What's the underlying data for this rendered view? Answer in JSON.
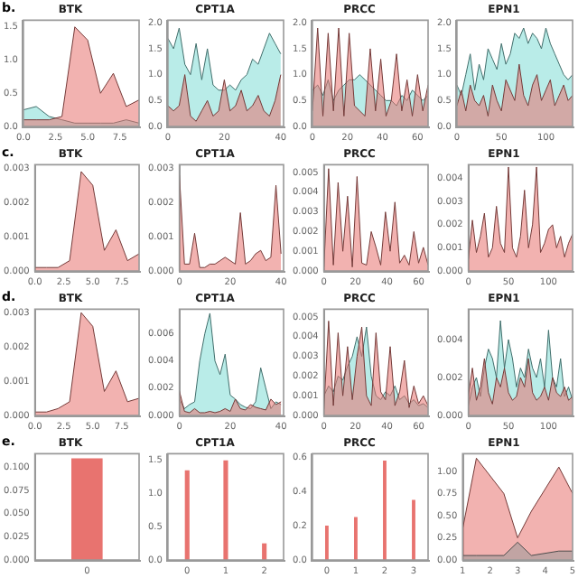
{
  "chart_data": [
    {
      "type": "area",
      "title": "BTK",
      "annotations": [
        "b."
      ],
      "xlim": [
        0,
        9
      ],
      "xticks": [
        {
          "value": 0,
          "label": "0.0"
        },
        {
          "value": 2.5,
          "label": "2.5"
        },
        {
          "value": 5,
          "label": "5.0"
        },
        {
          "value": 7.5,
          "label": "7.5"
        }
      ],
      "ylim": [
        0,
        1.6
      ],
      "yticks": [
        {
          "value": 0,
          "label": "0.0"
        },
        {
          "value": 0.5,
          "label": "0.5"
        },
        {
          "value": 1,
          "label": "1.0"
        },
        {
          "value": 1.5,
          "label": "1.5"
        }
      ],
      "x": [
        0,
        1,
        2,
        3,
        4,
        5,
        6,
        7,
        8,
        9
      ],
      "series": [
        {
          "color": "#7fdcd6",
          "values": [
            0.25,
            0.3,
            0.15,
            0.1,
            0.05,
            0.05,
            0.05,
            0.05,
            0.1,
            0.05
          ]
        },
        {
          "color": "#e8736f",
          "values": [
            0.1,
            0.1,
            0.1,
            0.15,
            1.5,
            1.3,
            0.5,
            0.8,
            0.3,
            0.4
          ]
        }
      ],
      "grid": false,
      "legend": false
    },
    {
      "type": "area",
      "title": "CPT1A",
      "xlim": [
        0,
        41
      ],
      "xticks": [
        0,
        20,
        40
      ],
      "ylim": [
        0,
        2.05
      ],
      "yticks": [
        {
          "value": 0,
          "label": "0.0"
        },
        {
          "value": 0.5,
          "label": "0.5"
        },
        {
          "value": 1,
          "label": "1.0"
        },
        {
          "value": 1.5,
          "label": "1.5"
        },
        {
          "value": 2,
          "label": "2.0"
        }
      ],
      "x": [
        0,
        2,
        4,
        6,
        8,
        10,
        12,
        14,
        16,
        18,
        20,
        22,
        24,
        26,
        28,
        30,
        32,
        34,
        36,
        38,
        40
      ],
      "series": [
        {
          "color": "#7fdcd6",
          "values": [
            1.7,
            1.5,
            1.9,
            1.2,
            1.0,
            1.6,
            0.9,
            1.5,
            0.8,
            0.7,
            0.7,
            0.8,
            0.7,
            0.9,
            1.0,
            1.3,
            1.2,
            1.5,
            1.8,
            1.6,
            1.4
          ]
        },
        {
          "color": "#e8736f",
          "values": [
            0.4,
            0.3,
            0.4,
            1.0,
            0.2,
            0.1,
            0.3,
            0.5,
            0.2,
            0.3,
            0.9,
            0.3,
            0.4,
            0.7,
            0.3,
            0.4,
            0.6,
            0.3,
            0.2,
            0.5,
            1.0
          ]
        }
      ],
      "grid": false,
      "legend": false
    },
    {
      "type": "area",
      "title": "PRCC",
      "xlim": [
        0,
        66
      ],
      "xticks": [
        0,
        20,
        40,
        60
      ],
      "ylim": [
        0,
        2.05
      ],
      "yticks": [
        {
          "value": 0,
          "label": "0.0"
        },
        {
          "value": 0.5,
          "label": "0.5"
        },
        {
          "value": 1,
          "label": "1.0"
        },
        {
          "value": 1.5,
          "label": "1.5"
        },
        {
          "value": 2,
          "label": "2.0"
        }
      ],
      "x": [
        0,
        3,
        6,
        9,
        12,
        15,
        18,
        21,
        24,
        27,
        30,
        33,
        36,
        39,
        42,
        45,
        48,
        51,
        54,
        57,
        60,
        63,
        66
      ],
      "series": [
        {
          "color": "#7fdcd6",
          "values": [
            0.7,
            0.8,
            0.6,
            0.9,
            0.5,
            0.7,
            0.8,
            0.9,
            0.9,
            1.0,
            0.9,
            0.8,
            0.7,
            0.6,
            0.5,
            0.5,
            0.4,
            0.6,
            0.5,
            0.7,
            0.6,
            0.5,
            0.6
          ]
        },
        {
          "color": "#e8736f",
          "values": [
            0.3,
            1.9,
            0.2,
            1.8,
            0.3,
            1.9,
            0.2,
            1.8,
            0.4,
            0.3,
            0.2,
            1.5,
            0.3,
            1.3,
            0.2,
            0.5,
            1.4,
            0.3,
            0.9,
            0.2,
            1.0,
            0.3,
            0.8
          ]
        }
      ],
      "grid": false,
      "legend": false
    },
    {
      "type": "area",
      "title": "EPN1",
      "xlim": [
        0,
        130
      ],
      "xticks": [
        0,
        50,
        100
      ],
      "ylim": [
        0,
        2.05
      ],
      "yticks": [
        {
          "value": 0,
          "label": "0.0"
        },
        {
          "value": 0.5,
          "label": "0.5"
        },
        {
          "value": 1,
          "label": "1.0"
        },
        {
          "value": 1.5,
          "label": "1.5"
        },
        {
          "value": 2,
          "label": "2.0"
        }
      ],
      "x": [
        0,
        5,
        10,
        15,
        20,
        25,
        30,
        35,
        40,
        45,
        50,
        55,
        60,
        65,
        70,
        75,
        80,
        85,
        90,
        95,
        100,
        105,
        110,
        115,
        120,
        125,
        130
      ],
      "series": [
        {
          "color": "#7fdcd6",
          "values": [
            0.8,
            0.6,
            1.0,
            1.4,
            0.7,
            1.2,
            0.9,
            1.5,
            1.3,
            1.1,
            1.6,
            1.2,
            1.4,
            1.8,
            1.7,
            1.9,
            1.6,
            1.8,
            1.7,
            1.5,
            1.9,
            1.6,
            1.4,
            1.2,
            1.0,
            0.9,
            1.0
          ]
        },
        {
          "color": "#e8736f",
          "values": [
            0.4,
            0.7,
            0.3,
            0.8,
            0.5,
            0.4,
            0.6,
            0.2,
            0.8,
            0.5,
            0.3,
            0.9,
            0.7,
            0.5,
            1.2,
            0.6,
            0.4,
            0.8,
            1.0,
            0.5,
            0.7,
            0.9,
            0.4,
            0.6,
            0.8,
            0.5,
            0.6
          ]
        }
      ],
      "grid": false,
      "legend": false
    },
    {
      "type": "area",
      "title": "BTK",
      "annotations": [
        "c."
      ],
      "xlim": [
        0,
        9
      ],
      "xticks": [
        {
          "value": 0,
          "label": "0.0"
        },
        {
          "value": 2.5,
          "label": "2.5"
        },
        {
          "value": 5,
          "label": "5.0"
        },
        {
          "value": 7.5,
          "label": "7.5"
        }
      ],
      "ylim": [
        0,
        0.0031
      ],
      "yticks": [
        {
          "value": 0,
          "label": "0.000"
        },
        {
          "value": 0.001,
          "label": "0.001"
        },
        {
          "value": 0.002,
          "label": "0.002"
        },
        {
          "value": 0.003,
          "label": "0.003"
        }
      ],
      "x": [
        0,
        1,
        2,
        3,
        4,
        5,
        6,
        7,
        8,
        9
      ],
      "series": [
        {
          "color": "#e8736f",
          "values": [
            0.0001,
            0.0001,
            0.0001,
            0.0003,
            0.0029,
            0.0025,
            0.0006,
            0.0012,
            0.0003,
            0.0005
          ]
        }
      ],
      "grid": false,
      "legend": false
    },
    {
      "type": "area",
      "title": "CPT1A",
      "xlim": [
        0,
        41
      ],
      "xticks": [
        0,
        20,
        40
      ],
      "ylim": [
        0,
        0.0031
      ],
      "yticks": [
        {
          "value": 0,
          "label": "0.000"
        },
        {
          "value": 0.001,
          "label": "0.001"
        },
        {
          "value": 0.002,
          "label": "0.002"
        },
        {
          "value": 0.003,
          "label": "0.003"
        }
      ],
      "x": [
        0,
        2,
        4,
        6,
        8,
        10,
        12,
        14,
        16,
        18,
        20,
        22,
        24,
        26,
        28,
        30,
        32,
        34,
        36,
        38,
        40
      ],
      "series": [
        {
          "color": "#e8736f",
          "values": [
            0.0028,
            0.0002,
            0.0002,
            0.0011,
            0.0001,
            0.0001,
            0.0002,
            0.0002,
            0.0003,
            0.0004,
            0.0003,
            0.0002,
            0.0017,
            0.0002,
            0.0003,
            0.0005,
            0.0006,
            0.0003,
            0.0004,
            0.0025,
            0.0005
          ]
        }
      ],
      "grid": false,
      "legend": false
    },
    {
      "type": "area",
      "title": "PRCC",
      "xlim": [
        0,
        66
      ],
      "xticks": [
        0,
        20,
        40,
        60
      ],
      "ylim": [
        0,
        0.0054
      ],
      "yticks": [
        {
          "value": 0,
          "label": "0.000"
        },
        {
          "value": 0.001,
          "label": "0.001"
        },
        {
          "value": 0.002,
          "label": "0.002"
        },
        {
          "value": 0.003,
          "label": "0.003"
        },
        {
          "value": 0.004,
          "label": "0.004"
        },
        {
          "value": 0.005,
          "label": "0.005"
        }
      ],
      "x": [
        0,
        3,
        6,
        9,
        12,
        15,
        18,
        21,
        24,
        27,
        30,
        33,
        36,
        39,
        42,
        45,
        48,
        51,
        54,
        57,
        60,
        63,
        66
      ],
      "series": [
        {
          "color": "#e8736f",
          "values": [
            0.0002,
            0.0052,
            0.0003,
            0.0045,
            0.001,
            0.0038,
            0.0002,
            0.0048,
            0.0004,
            0.0003,
            0.002,
            0.0012,
            0.0003,
            0.003,
            0.001,
            0.0035,
            0.0004,
            0.0008,
            0.0003,
            0.002,
            0.0004,
            0.0012,
            0.0003
          ]
        }
      ],
      "grid": false,
      "legend": false
    },
    {
      "type": "area",
      "title": "EPN1",
      "xlim": [
        0,
        130
      ],
      "xticks": [
        0,
        50,
        100
      ],
      "ylim": [
        0,
        0.0046
      ],
      "yticks": [
        {
          "value": 0,
          "label": "0.000"
        },
        {
          "value": 0.001,
          "label": "0.001"
        },
        {
          "value": 0.002,
          "label": "0.002"
        },
        {
          "value": 0.003,
          "label": "0.003"
        },
        {
          "value": 0.004,
          "label": "0.004"
        }
      ],
      "x": [
        0,
        5,
        10,
        15,
        20,
        25,
        30,
        35,
        40,
        45,
        50,
        55,
        60,
        65,
        70,
        75,
        80,
        85,
        90,
        95,
        100,
        105,
        110,
        115,
        120,
        125,
        130
      ],
      "series": [
        {
          "color": "#e8736f",
          "values": [
            0.0005,
            0.0022,
            0.0008,
            0.0015,
            0.0025,
            0.0006,
            0.001,
            0.0028,
            0.0012,
            0.0008,
            0.0045,
            0.001,
            0.0006,
            0.0015,
            0.0035,
            0.001,
            0.002,
            0.0045,
            0.0008,
            0.0012,
            0.0018,
            0.002,
            0.001,
            0.0015,
            0.0006,
            0.0012,
            0.0016
          ]
        }
      ],
      "grid": false,
      "legend": false
    },
    {
      "type": "area",
      "title": "BTK",
      "annotations": [
        "d."
      ],
      "xlim": [
        0,
        9
      ],
      "xticks": [
        {
          "value": 0,
          "label": "0.0"
        },
        {
          "value": 2.5,
          "label": "2.5"
        },
        {
          "value": 5,
          "label": "5.0"
        },
        {
          "value": 7.5,
          "label": "7.5"
        }
      ],
      "ylim": [
        0,
        0.0031
      ],
      "yticks": [
        {
          "value": 0,
          "label": "0.000"
        },
        {
          "value": 0.001,
          "label": "0.001"
        },
        {
          "value": 0.002,
          "label": "0.002"
        },
        {
          "value": 0.003,
          "label": "0.003"
        }
      ],
      "x": [
        0,
        1,
        2,
        3,
        4,
        5,
        6,
        7,
        8,
        9
      ],
      "series": [
        {
          "color": "#e8736f",
          "values": [
            0.0001,
            0.0001,
            0.0002,
            0.0004,
            0.003,
            0.0026,
            0.0007,
            0.0013,
            0.0004,
            0.0005
          ]
        }
      ],
      "grid": false,
      "legend": false
    },
    {
      "type": "area",
      "title": "CPT1A",
      "xlim": [
        0,
        41
      ],
      "xticks": [
        0,
        20,
        40
      ],
      "ylim": [
        0,
        0.0078
      ],
      "yticks": [
        {
          "value": 0,
          "label": "0.000"
        },
        {
          "value": 0.002,
          "label": "0.002"
        },
        {
          "value": 0.004,
          "label": "0.004"
        },
        {
          "value": 0.006,
          "label": "0.006"
        }
      ],
      "x": [
        0,
        2,
        4,
        6,
        8,
        10,
        12,
        14,
        16,
        18,
        20,
        22,
        24,
        26,
        28,
        30,
        32,
        34,
        36,
        38,
        40
      ],
      "series": [
        {
          "color": "#7fdcd6",
          "values": [
            0.0012,
            0.0005,
            0.0008,
            0.001,
            0.004,
            0.006,
            0.0075,
            0.004,
            0.003,
            0.0045,
            0.0015,
            0.0012,
            0.0008,
            0.0006,
            0.0005,
            0.001,
            0.0035,
            0.002,
            0.0005,
            0.001,
            0.0008
          ]
        },
        {
          "color": "#e8736f",
          "values": [
            0.0018,
            0.0003,
            0.0002,
            0.0005,
            0.0002,
            0.0002,
            0.0003,
            0.0002,
            0.0003,
            0.0005,
            0.0003,
            0.0012,
            0.0005,
            0.0004,
            0.0008,
            0.0006,
            0.0005,
            0.0004,
            0.0012,
            0.0008,
            0.001
          ]
        }
      ],
      "grid": false,
      "legend": false
    },
    {
      "type": "area",
      "title": "PRCC",
      "xlim": [
        0,
        66
      ],
      "xticks": [
        0,
        20,
        40,
        60
      ],
      "ylim": [
        0,
        0.0054
      ],
      "yticks": [
        {
          "value": 0,
          "label": "0.000"
        },
        {
          "value": 0.001,
          "label": "0.001"
        },
        {
          "value": 0.002,
          "label": "0.002"
        },
        {
          "value": 0.003,
          "label": "0.003"
        },
        {
          "value": 0.004,
          "label": "0.004"
        },
        {
          "value": 0.005,
          "label": "0.005"
        }
      ],
      "x": [
        0,
        3,
        6,
        9,
        12,
        15,
        18,
        21,
        24,
        27,
        30,
        33,
        36,
        39,
        42,
        45,
        48,
        51,
        54,
        57,
        60,
        63,
        66
      ],
      "series": [
        {
          "color": "#7fdcd6",
          "values": [
            0.001,
            0.0015,
            0.0012,
            0.002,
            0.0018,
            0.0025,
            0.003,
            0.004,
            0.003,
            0.0045,
            0.002,
            0.001,
            0.0008,
            0.0012,
            0.001,
            0.0015,
            0.0008,
            0.001,
            0.0006,
            0.0008,
            0.0005,
            0.0006,
            0.0004
          ]
        },
        {
          "color": "#e8736f",
          "values": [
            0.0003,
            0.0048,
            0.0005,
            0.0042,
            0.001,
            0.0035,
            0.0008,
            0.003,
            0.0045,
            0.001,
            0.0005,
            0.0042,
            0.0012,
            0.0008,
            0.0035,
            0.0005,
            0.0012,
            0.0028,
            0.0004,
            0.0015,
            0.0006,
            0.001,
            0.0005
          ]
        }
      ],
      "grid": false,
      "legend": false
    },
    {
      "type": "area",
      "title": "EPN1",
      "xlim": [
        0,
        130
      ],
      "xticks": [
        0,
        50,
        100
      ],
      "ylim": [
        0,
        0.0056
      ],
      "yticks": [
        {
          "value": 0,
          "label": "0.000"
        },
        {
          "value": 0.002,
          "label": "0.002"
        },
        {
          "value": 0.004,
          "label": "0.004"
        }
      ],
      "x": [
        0,
        5,
        10,
        15,
        20,
        25,
        30,
        35,
        40,
        45,
        50,
        55,
        60,
        65,
        70,
        75,
        80,
        85,
        90,
        95,
        100,
        105,
        110,
        115,
        120,
        125,
        130
      ],
      "series": [
        {
          "color": "#7fdcd6",
          "values": [
            0.0005,
            0.0015,
            0.002,
            0.001,
            0.0025,
            0.0035,
            0.003,
            0.002,
            0.005,
            0.0025,
            0.004,
            0.003,
            0.0015,
            0.0025,
            0.002,
            0.0035,
            0.0025,
            0.002,
            0.003,
            0.0015,
            0.0045,
            0.002,
            0.0015,
            0.003,
            0.001,
            0.0015,
            0.0008
          ]
        },
        {
          "color": "#e8736f",
          "values": [
            0.001,
            0.0025,
            0.0008,
            0.0015,
            0.003,
            0.0012,
            0.0006,
            0.002,
            0.0015,
            0.0025,
            0.0012,
            0.0008,
            0.001,
            0.002,
            0.0015,
            0.003,
            0.0012,
            0.0008,
            0.001,
            0.0015,
            0.0008,
            0.002,
            0.0012,
            0.001,
            0.0015,
            0.0008,
            0.001
          ]
        }
      ],
      "grid": false,
      "legend": false
    },
    {
      "type": "bar",
      "title": "BTK",
      "annotations": [
        "e."
      ],
      "categories": [
        "0"
      ],
      "ylim": [
        0,
        0.115
      ],
      "yticks": [
        {
          "value": 0,
          "label": "0.000"
        },
        {
          "value": 0.025,
          "label": "0.025"
        },
        {
          "value": 0.05,
          "label": "0.050"
        },
        {
          "value": 0.075,
          "label": "0.075"
        },
        {
          "value": 0.1,
          "label": "0.100"
        }
      ],
      "series": [
        {
          "color": "#e8736f",
          "values": [
            0.11
          ]
        }
      ],
      "grid": false,
      "legend": false
    },
    {
      "type": "bar",
      "title": "CPT1A",
      "categories": [
        "0",
        "1",
        "2"
      ],
      "ylim": [
        0,
        1.6
      ],
      "yticks": [
        {
          "value": 0,
          "label": "0.0"
        },
        {
          "value": 0.5,
          "label": "0.5"
        },
        {
          "value": 1,
          "label": "1.0"
        },
        {
          "value": 1.5,
          "label": "1.5"
        }
      ],
      "series": [
        {
          "color": "#e8736f",
          "values": [
            1.35,
            1.5,
            0.25
          ]
        }
      ],
      "grid": false,
      "legend": false
    },
    {
      "type": "bar",
      "title": "PRCC",
      "categories": [
        "0",
        "1",
        "2",
        "3"
      ],
      "ylim": [
        0,
        0.62
      ],
      "yticks": [
        {
          "value": 0,
          "label": "0.0"
        },
        {
          "value": 0.2,
          "label": "0.2"
        },
        {
          "value": 0.4,
          "label": "0.4"
        },
        {
          "value": 0.6,
          "label": "0.6"
        }
      ],
      "series": [
        {
          "color": "#e8736f",
          "values": [
            0.2,
            0.25,
            0.58,
            0.35
          ]
        }
      ],
      "grid": false,
      "legend": false
    },
    {
      "type": "area",
      "title": "EPN1",
      "xlim": [
        1,
        5
      ],
      "xticks": [
        1,
        2,
        3,
        4,
        5
      ],
      "ylim": [
        0,
        1.2
      ],
      "yticks": [
        {
          "value": 0,
          "label": "0.00"
        },
        {
          "value": 0.25,
          "label": "0.25"
        },
        {
          "value": 0.5,
          "label": "0.50"
        },
        {
          "value": 0.75,
          "label": "0.75"
        },
        {
          "value": 1,
          "label": "1.00"
        }
      ],
      "x": [
        1,
        1.5,
        2.5,
        3,
        3.5,
        4.5,
        5
      ],
      "series": [
        {
          "color": "#e8736f",
          "values": [
            0.35,
            1.15,
            0.75,
            0.25,
            0.55,
            1.05,
            0.75
          ]
        },
        {
          "color": "#999999",
          "values": [
            0.05,
            0.05,
            0.05,
            0.2,
            0.05,
            0.1,
            0.1
          ]
        }
      ],
      "grid": false,
      "legend": false
    }
  ]
}
